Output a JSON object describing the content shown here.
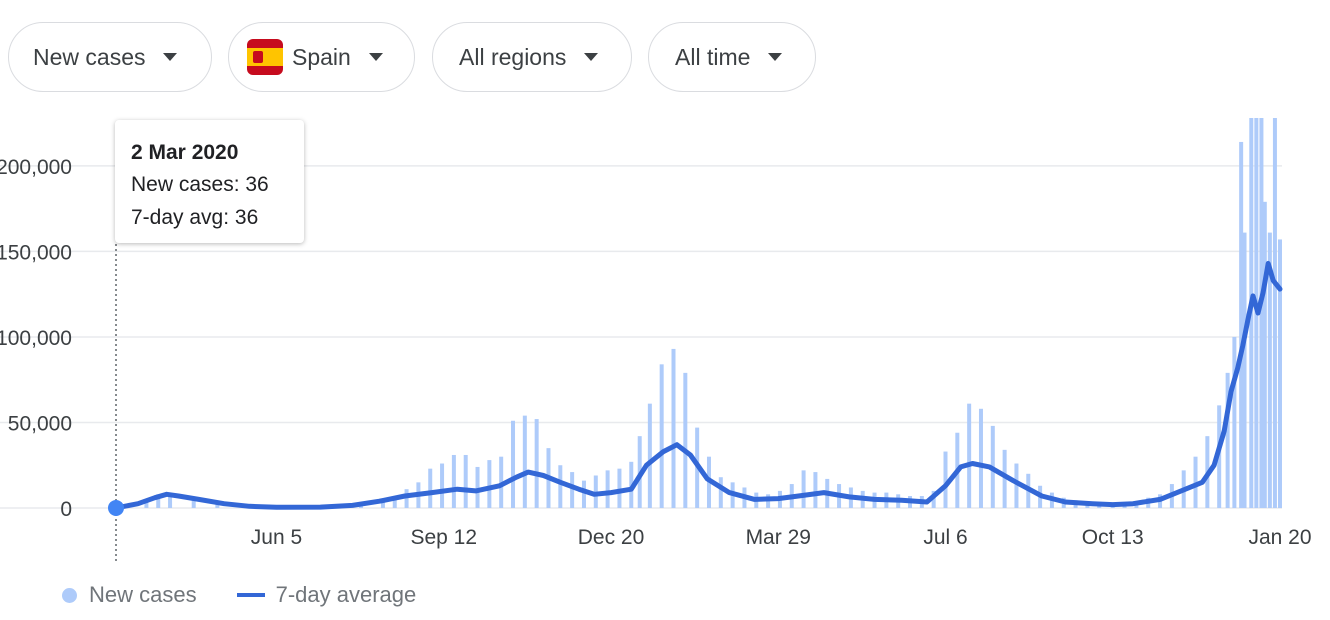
{
  "filters": [
    {
      "label": "New cases",
      "has_flag": false
    },
    {
      "label": "Spain",
      "has_flag": true,
      "flag_icon": "spain-flag-icon"
    },
    {
      "label": "All regions",
      "has_flag": false
    },
    {
      "label": "All time",
      "has_flag": false
    }
  ],
  "tooltip": {
    "date": "2 Mar 2020",
    "new_cases_line": "New cases: 36",
    "avg_line": "7-day avg: 36"
  },
  "legend": {
    "new_cases": "New cases",
    "avg": "7-day average"
  },
  "colors": {
    "bar": "#aecbfa",
    "line": "#3367d6",
    "grid": "#e8eaed",
    "flag_red": "#c60b1e",
    "flag_yellow": "#ffc400"
  },
  "chart_data": {
    "type": "bar",
    "title": "",
    "xlabel": "",
    "ylabel": "",
    "ylim": [
      0,
      228000
    ],
    "yticks": [
      0,
      50000,
      100000,
      150000,
      200000
    ],
    "ytick_labels": [
      "0",
      "50,000",
      "100,000",
      "150,000",
      "200,000"
    ],
    "xticks": [
      "2020-06-05",
      "2020-09-12",
      "2020-12-20",
      "2021-03-29",
      "2021-07-06",
      "2021-10-13",
      "2022-01-20"
    ],
    "xtick_labels": [
      "Jun 5",
      "Sep 12",
      "Dec 20",
      "Mar 29",
      "Jul 6",
      "Oct 13",
      "Jan 20"
    ],
    "x_range": [
      "2020-03-02",
      "2022-01-20"
    ],
    "grid": true,
    "legend_position": "bottom-left",
    "series": [
      {
        "name": "New cases",
        "type": "bar",
        "points": [
          [
            "2020-03-02",
            36
          ],
          [
            "2020-03-20",
            4000
          ],
          [
            "2020-03-27",
            8000
          ],
          [
            "2020-04-03",
            7500
          ],
          [
            "2020-04-17",
            5000
          ],
          [
            "2020-05-01",
            2500
          ],
          [
            "2020-05-20",
            800
          ],
          [
            "2020-06-05",
            400
          ],
          [
            "2020-07-01",
            600
          ],
          [
            "2020-07-25",
            3000
          ],
          [
            "2020-08-07",
            5000
          ],
          [
            "2020-08-14",
            7000
          ],
          [
            "2020-08-21",
            11000
          ],
          [
            "2020-08-28",
            15000
          ],
          [
            "2020-09-04",
            23000
          ],
          [
            "2020-09-11",
            26000
          ],
          [
            "2020-09-18",
            31000
          ],
          [
            "2020-09-25",
            31000
          ],
          [
            "2020-10-02",
            24000
          ],
          [
            "2020-10-09",
            28000
          ],
          [
            "2020-10-16",
            30000
          ],
          [
            "2020-10-23",
            51000
          ],
          [
            "2020-10-30",
            54000
          ],
          [
            "2020-11-06",
            52000
          ],
          [
            "2020-11-13",
            35000
          ],
          [
            "2020-11-20",
            25000
          ],
          [
            "2020-11-27",
            21000
          ],
          [
            "2020-12-04",
            16000
          ],
          [
            "2020-12-11",
            19000
          ],
          [
            "2020-12-18",
            22000
          ],
          [
            "2020-12-25",
            23000
          ],
          [
            "2021-01-01",
            27000
          ],
          [
            "2021-01-06",
            42000
          ],
          [
            "2021-01-12",
            61000
          ],
          [
            "2021-01-19",
            84000
          ],
          [
            "2021-01-26",
            93000
          ],
          [
            "2021-02-02",
            79000
          ],
          [
            "2021-02-09",
            47000
          ],
          [
            "2021-02-16",
            30000
          ],
          [
            "2021-02-23",
            18000
          ],
          [
            "2021-03-02",
            15000
          ],
          [
            "2021-03-09",
            12000
          ],
          [
            "2021-03-16",
            9000
          ],
          [
            "2021-03-23",
            8000
          ],
          [
            "2021-03-30",
            10000
          ],
          [
            "2021-04-06",
            14000
          ],
          [
            "2021-04-13",
            22000
          ],
          [
            "2021-04-20",
            21000
          ],
          [
            "2021-04-27",
            17000
          ],
          [
            "2021-05-04",
            14000
          ],
          [
            "2021-05-11",
            12000
          ],
          [
            "2021-05-18",
            10000
          ],
          [
            "2021-05-25",
            9000
          ],
          [
            "2021-06-01",
            9000
          ],
          [
            "2021-06-08",
            8000
          ],
          [
            "2021-06-15",
            7000
          ],
          [
            "2021-06-22",
            7000
          ],
          [
            "2021-06-29",
            10000
          ],
          [
            "2021-07-06",
            33000
          ],
          [
            "2021-07-13",
            44000
          ],
          [
            "2021-07-20",
            61000
          ],
          [
            "2021-07-27",
            58000
          ],
          [
            "2021-08-03",
            48000
          ],
          [
            "2021-08-10",
            34000
          ],
          [
            "2021-08-17",
            26000
          ],
          [
            "2021-08-24",
            20000
          ],
          [
            "2021-08-31",
            13000
          ],
          [
            "2021-09-07",
            9000
          ],
          [
            "2021-09-14",
            6000
          ],
          [
            "2021-09-21",
            4500
          ],
          [
            "2021-09-28",
            3500
          ],
          [
            "2021-10-05",
            3000
          ],
          [
            "2021-10-13",
            2800
          ],
          [
            "2021-10-20",
            3200
          ],
          [
            "2021-10-27",
            4000
          ],
          [
            "2021-11-03",
            6000
          ],
          [
            "2021-11-10",
            8000
          ],
          [
            "2021-11-17",
            14000
          ],
          [
            "2021-11-24",
            22000
          ],
          [
            "2021-12-01",
            30000
          ],
          [
            "2021-12-08",
            42000
          ],
          [
            "2021-12-15",
            60000
          ],
          [
            "2021-12-20",
            79000
          ],
          [
            "2021-12-24",
            100000
          ],
          [
            "2021-12-28",
            214000
          ],
          [
            "2021-12-30",
            161000
          ],
          [
            "2022-01-03",
            228000
          ],
          [
            "2022-01-06",
            228000
          ],
          [
            "2022-01-09",
            228000
          ],
          [
            "2022-01-11",
            179000
          ],
          [
            "2022-01-14",
            161000
          ],
          [
            "2022-01-17",
            228000
          ],
          [
            "2022-01-20",
            157000
          ]
        ]
      },
      {
        "name": "7-day average",
        "type": "line",
        "points": [
          [
            "2020-03-02",
            36
          ],
          [
            "2020-03-15",
            2500
          ],
          [
            "2020-03-25",
            6000
          ],
          [
            "2020-04-01",
            8000
          ],
          [
            "2020-04-08",
            7000
          ],
          [
            "2020-04-20",
            5000
          ],
          [
            "2020-05-05",
            2500
          ],
          [
            "2020-05-20",
            1000
          ],
          [
            "2020-06-05",
            400
          ],
          [
            "2020-07-01",
            500
          ],
          [
            "2020-07-20",
            1500
          ],
          [
            "2020-08-05",
            4000
          ],
          [
            "2020-08-20",
            7000
          ],
          [
            "2020-09-05",
            9000
          ],
          [
            "2020-09-20",
            11000
          ],
          [
            "2020-10-01",
            10000
          ],
          [
            "2020-10-15",
            13000
          ],
          [
            "2020-10-25",
            18000
          ],
          [
            "2020-11-01",
            21000
          ],
          [
            "2020-11-10",
            19000
          ],
          [
            "2020-11-20",
            15000
          ],
          [
            "2020-12-01",
            11000
          ],
          [
            "2020-12-10",
            8000
          ],
          [
            "2020-12-20",
            9000
          ],
          [
            "2021-01-01",
            11000
          ],
          [
            "2021-01-10",
            25000
          ],
          [
            "2021-01-20",
            33000
          ],
          [
            "2021-01-28",
            37000
          ],
          [
            "2021-02-05",
            31000
          ],
          [
            "2021-02-15",
            17000
          ],
          [
            "2021-02-28",
            9000
          ],
          [
            "2021-03-15",
            5000
          ],
          [
            "2021-03-29",
            5500
          ],
          [
            "2021-04-10",
            7000
          ],
          [
            "2021-04-25",
            9000
          ],
          [
            "2021-05-10",
            6500
          ],
          [
            "2021-05-25",
            5000
          ],
          [
            "2021-06-10",
            4500
          ],
          [
            "2021-06-25",
            3500
          ],
          [
            "2021-07-06",
            13000
          ],
          [
            "2021-07-15",
            24000
          ],
          [
            "2021-07-22",
            26000
          ],
          [
            "2021-08-01",
            24000
          ],
          [
            "2021-08-15",
            16000
          ],
          [
            "2021-09-01",
            7000
          ],
          [
            "2021-09-15",
            3500
          ],
          [
            "2021-10-01",
            2500
          ],
          [
            "2021-10-13",
            2000
          ],
          [
            "2021-10-25",
            2500
          ],
          [
            "2021-11-10",
            5000
          ],
          [
            "2021-11-25",
            11000
          ],
          [
            "2021-12-05",
            15000
          ],
          [
            "2021-12-12",
            25000
          ],
          [
            "2021-12-18",
            45000
          ],
          [
            "2021-12-22",
            68000
          ],
          [
            "2021-12-26",
            82000
          ],
          [
            "2021-12-29",
            95000
          ],
          [
            "2022-01-01",
            110000
          ],
          [
            "2022-01-04",
            124000
          ],
          [
            "2022-01-07",
            114000
          ],
          [
            "2022-01-10",
            126000
          ],
          [
            "2022-01-13",
            143000
          ],
          [
            "2022-01-16",
            133000
          ],
          [
            "2022-01-20",
            128000
          ]
        ]
      }
    ]
  }
}
